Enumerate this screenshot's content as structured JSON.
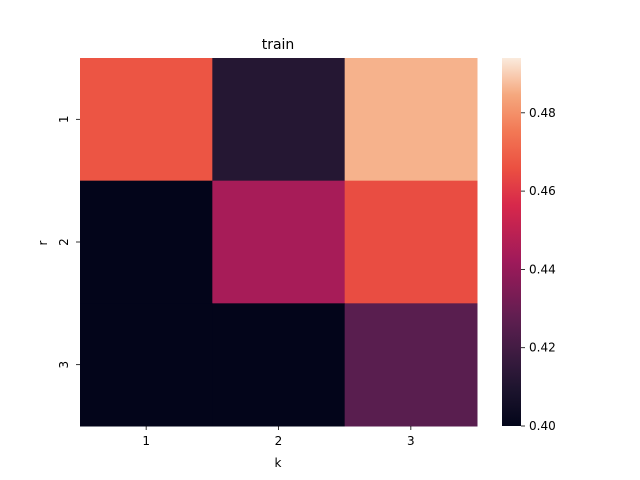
{
  "chart_data": {
    "type": "heatmap",
    "title": "train",
    "xlabel": "k",
    "ylabel": "r",
    "x_categories": [
      "1",
      "2",
      "3"
    ],
    "y_categories": [
      "1",
      "2",
      "3"
    ],
    "values": [
      [
        0.467,
        0.412,
        0.486
      ],
      [
        0.399,
        0.444,
        0.465
      ],
      [
        0.399,
        0.399,
        0.426
      ]
    ],
    "color_range": [
      0.4,
      0.494
    ],
    "colorbar_ticks": [
      "0.40",
      "0.42",
      "0.44",
      "0.46",
      "0.48"
    ],
    "colormap": "rocket"
  }
}
